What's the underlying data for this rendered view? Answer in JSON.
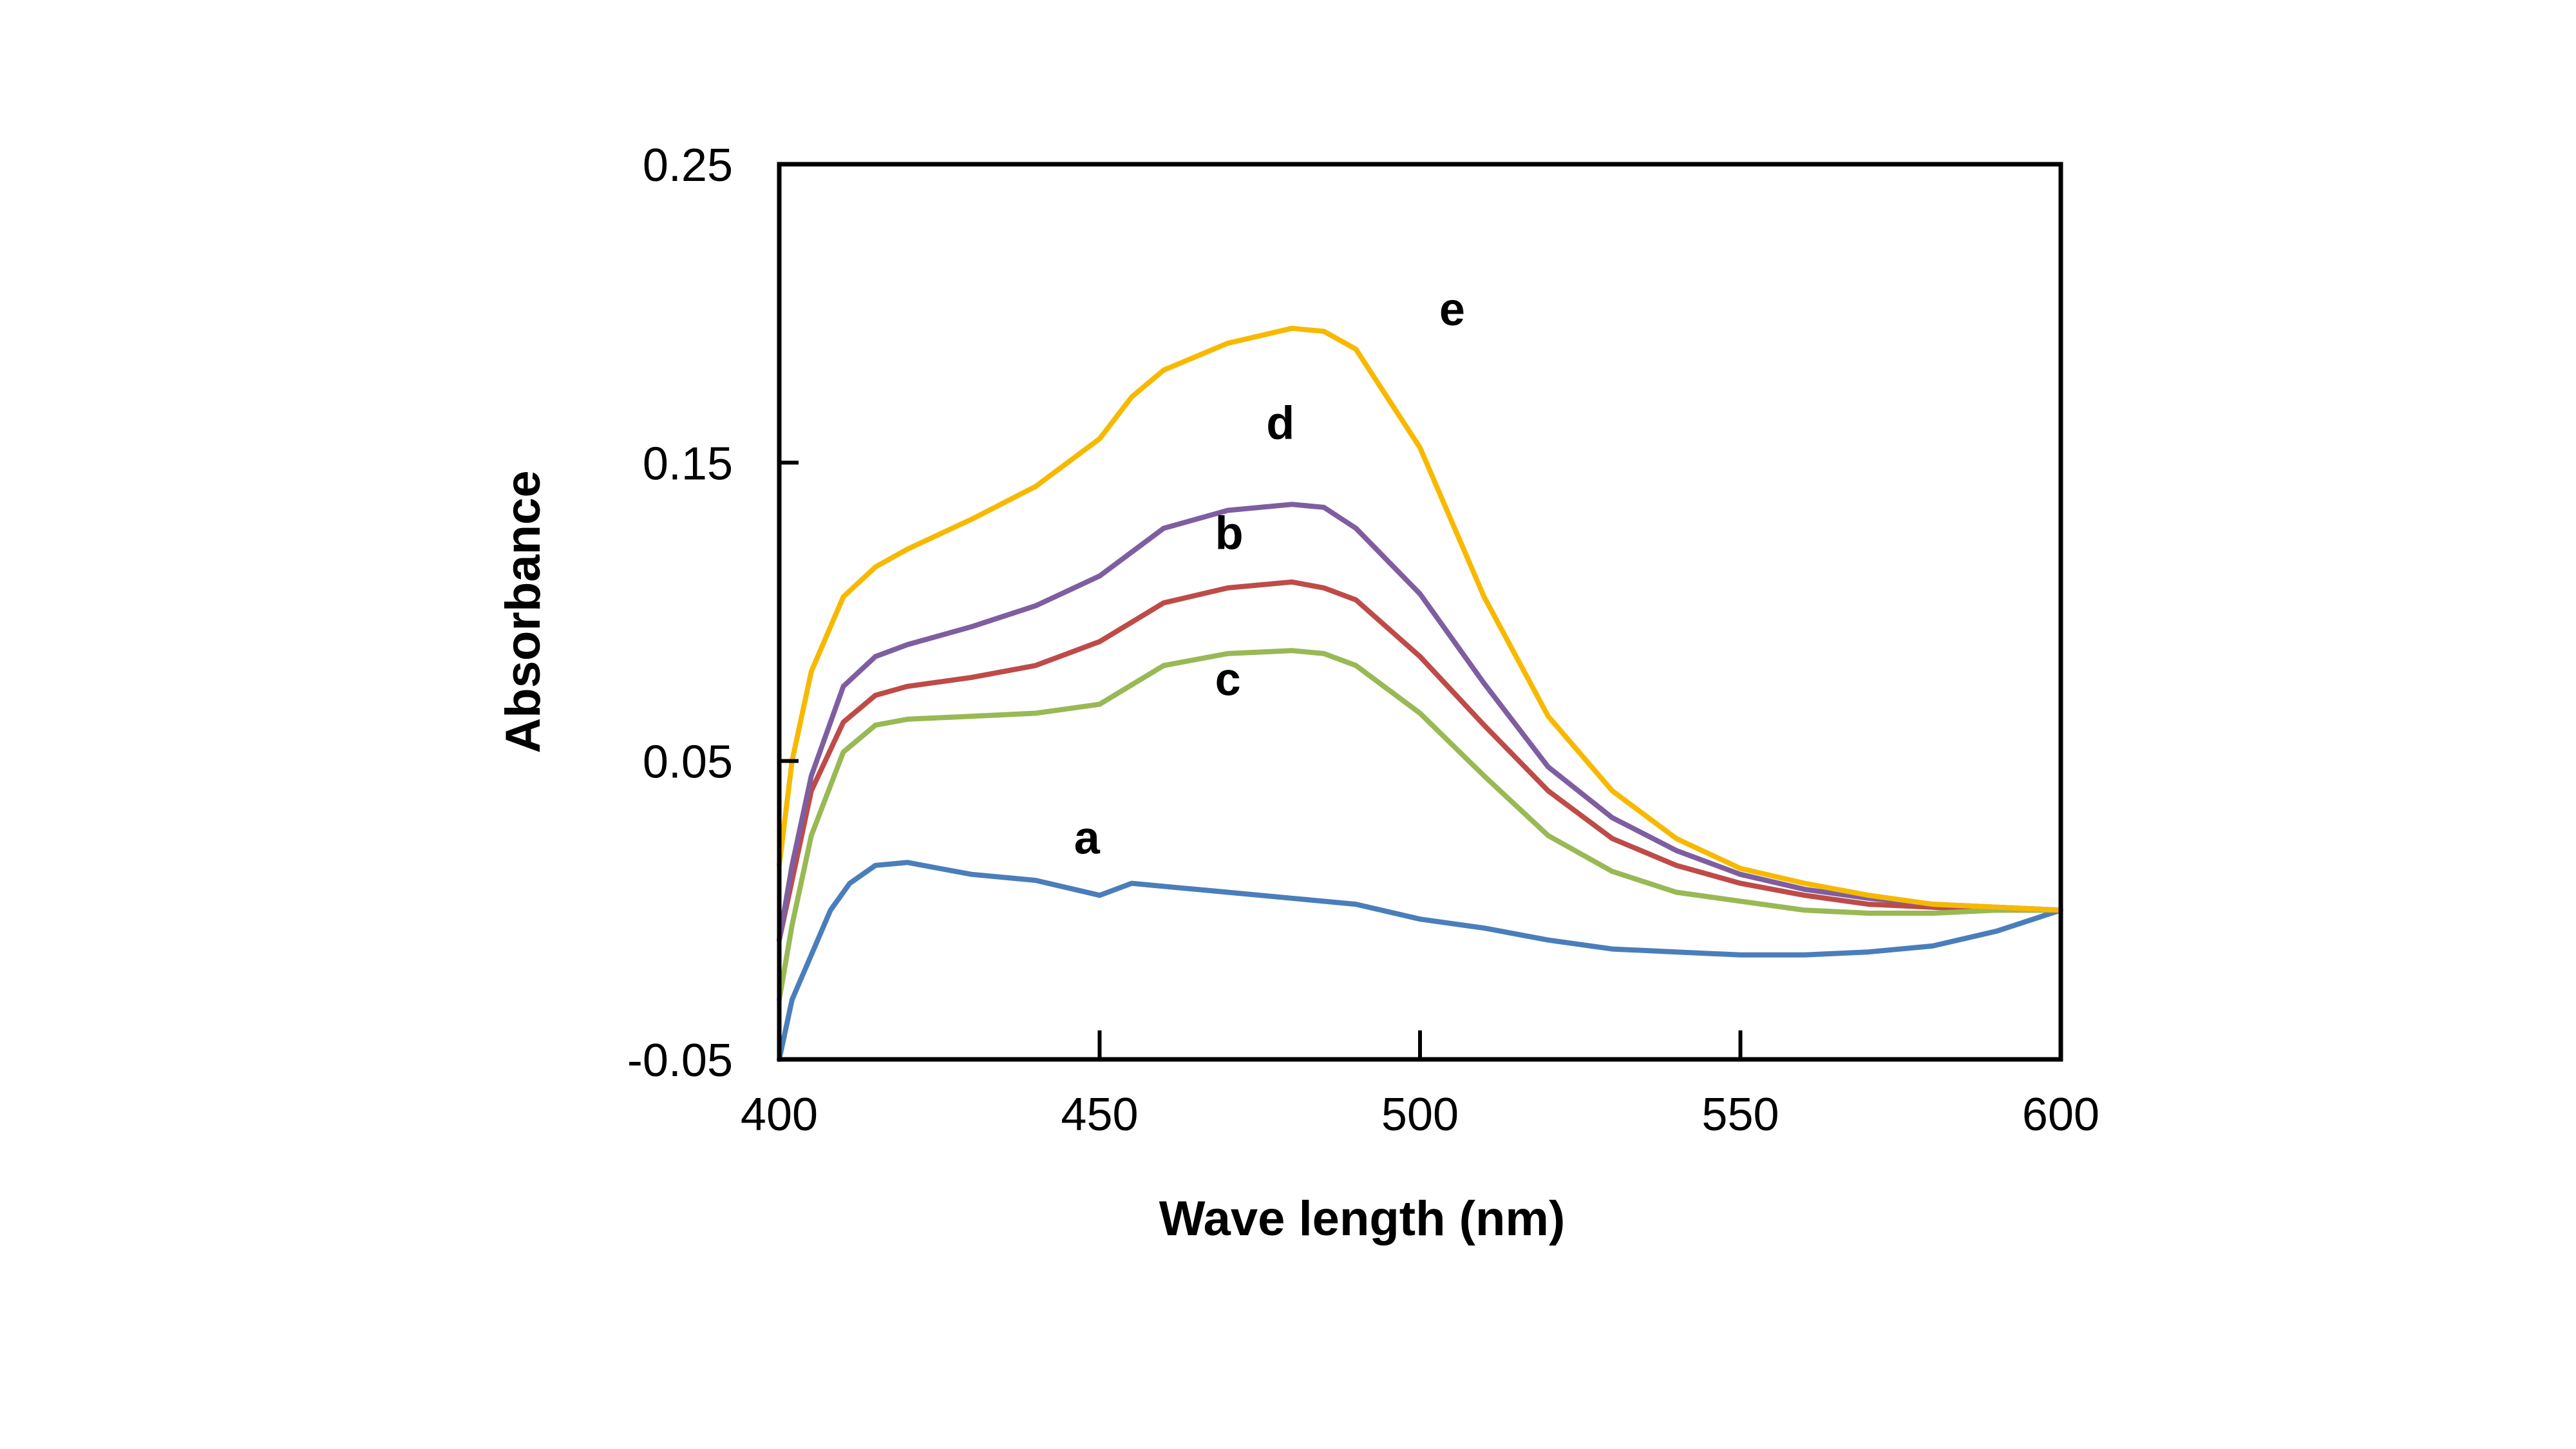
{
  "chart_data": {
    "type": "line",
    "title": "",
    "xlabel": "Wave length (nm)",
    "ylabel": "Absorbance",
    "xlim": [
      400,
      600
    ],
    "ylim": [
      -0.05,
      0.25
    ],
    "xticks": [
      400,
      450,
      500,
      550,
      600
    ],
    "xtick_labels": [
      "400",
      "450",
      "500",
      "550",
      "600"
    ],
    "yticks": [
      -0.05,
      0.05,
      0.15,
      0.25
    ],
    "ytick_labels": [
      "-0.05",
      "0.05",
      "0.15",
      "0.25"
    ],
    "grid": false,
    "legend": "none (curves labeled inline)",
    "series": [
      {
        "name": "a",
        "color": "#4a7ebb",
        "label_at": [
          446,
          0.019
        ],
        "x": [
          400,
          402,
          405,
          408,
          411,
          415,
          420,
          425,
          430,
          440,
          450,
          455,
          460,
          470,
          480,
          490,
          500,
          510,
          520,
          530,
          540,
          550,
          560,
          570,
          580,
          590,
          600
        ],
        "y": [
          -0.05,
          -0.03,
          -0.015,
          0.0,
          0.009,
          0.015,
          0.016,
          0.014,
          0.012,
          0.01,
          0.005,
          0.009,
          0.008,
          0.006,
          0.004,
          0.002,
          -0.003,
          -0.006,
          -0.01,
          -0.013,
          -0.014,
          -0.015,
          -0.015,
          -0.014,
          -0.012,
          -0.007,
          0.0
        ]
      },
      {
        "name": "b",
        "color": "#be4b48",
        "label_at": [
          468,
          0.121
        ],
        "x": [
          400,
          402,
          405,
          410,
          415,
          420,
          430,
          440,
          450,
          460,
          470,
          480,
          485,
          490,
          500,
          510,
          520,
          530,
          540,
          550,
          560,
          570,
          580,
          590,
          600
        ],
        "y": [
          -0.01,
          0.01,
          0.04,
          0.063,
          0.072,
          0.075,
          0.078,
          0.082,
          0.09,
          0.103,
          0.108,
          0.11,
          0.108,
          0.104,
          0.085,
          0.062,
          0.04,
          0.024,
          0.015,
          0.009,
          0.005,
          0.002,
          0.001,
          0.0,
          0.0
        ]
      },
      {
        "name": "c",
        "color": "#98b954",
        "label_at": [
          468,
          0.072
        ],
        "x": [
          400,
          402,
          405,
          410,
          415,
          420,
          430,
          440,
          450,
          460,
          470,
          480,
          485,
          490,
          500,
          510,
          520,
          530,
          540,
          550,
          560,
          570,
          580,
          590,
          600
        ],
        "y": [
          -0.03,
          -0.005,
          0.025,
          0.053,
          0.062,
          0.064,
          0.065,
          0.066,
          0.069,
          0.082,
          0.086,
          0.087,
          0.086,
          0.082,
          0.066,
          0.045,
          0.025,
          0.013,
          0.006,
          0.003,
          0.0,
          -0.001,
          -0.001,
          0.0,
          0.0
        ]
      },
      {
        "name": "d",
        "color": "#7e5ea0",
        "label_at": [
          476,
          0.158
        ],
        "x": [
          400,
          402,
          405,
          410,
          415,
          420,
          430,
          440,
          450,
          460,
          470,
          480,
          485,
          490,
          500,
          510,
          520,
          530,
          540,
          550,
          560,
          570,
          580,
          590,
          600
        ],
        "y": [
          -0.01,
          0.015,
          0.045,
          0.075,
          0.085,
          0.089,
          0.095,
          0.102,
          0.112,
          0.128,
          0.134,
          0.136,
          0.135,
          0.128,
          0.106,
          0.076,
          0.048,
          0.031,
          0.02,
          0.012,
          0.007,
          0.004,
          0.002,
          0.001,
          0.0
        ]
      },
      {
        "name": "e",
        "color": "#f7b900",
        "label_at": [
          503,
          0.196
        ],
        "x": [
          400,
          402,
          405,
          410,
          415,
          420,
          430,
          440,
          450,
          455,
          460,
          470,
          480,
          485,
          490,
          500,
          510,
          520,
          530,
          540,
          550,
          560,
          570,
          580,
          590,
          600
        ],
        "y": [
          0.015,
          0.05,
          0.08,
          0.105,
          0.115,
          0.121,
          0.131,
          0.142,
          0.158,
          0.172,
          0.181,
          0.19,
          0.195,
          0.194,
          0.188,
          0.155,
          0.105,
          0.065,
          0.04,
          0.024,
          0.014,
          0.009,
          0.005,
          0.002,
          0.001,
          0.0
        ]
      }
    ]
  }
}
